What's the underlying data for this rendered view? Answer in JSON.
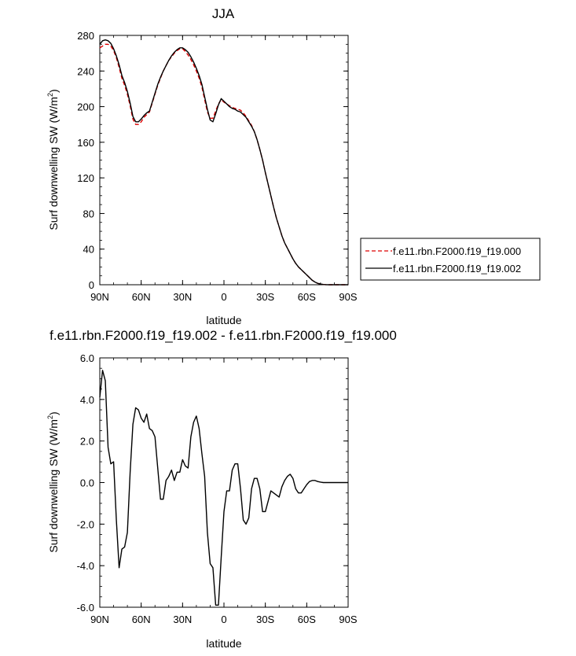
{
  "chart_data": [
    {
      "type": "line",
      "title": "JJA",
      "xlabel": "latitude",
      "ylabel": "Surf downwelling SW (W/m",
      "ylabel_sup": "2",
      "ylabel_tail": ")",
      "xlim": [
        90,
        -90
      ],
      "ylim": [
        0,
        280
      ],
      "x_ticks": [
        {
          "v": 90,
          "label": "90N"
        },
        {
          "v": 60,
          "label": "60N"
        },
        {
          "v": 30,
          "label": "30N"
        },
        {
          "v": 0,
          "label": "0"
        },
        {
          "v": -30,
          "label": "30S"
        },
        {
          "v": -60,
          "label": "60S"
        },
        {
          "v": -90,
          "label": "90S"
        }
      ],
      "y_ticks": [
        {
          "v": 0,
          "label": "0"
        },
        {
          "v": 40,
          "label": "40"
        },
        {
          "v": 80,
          "label": "80"
        },
        {
          "v": 120,
          "label": "120"
        },
        {
          "v": 160,
          "label": "160"
        },
        {
          "v": 200,
          "label": "200"
        },
        {
          "v": 240,
          "label": "240"
        },
        {
          "v": 280,
          "label": "280"
        }
      ],
      "legend_position": "right",
      "series": [
        {
          "name": "f.e11.rbn.F2000.f19_f19.000",
          "color": "#dd0000",
          "dash": "dashed",
          "x": [
            90,
            88,
            86,
            84,
            82,
            80,
            78,
            76,
            74,
            72,
            70,
            68,
            66,
            64,
            62,
            60,
            58,
            56,
            54,
            52,
            50,
            48,
            46,
            44,
            42,
            40,
            38,
            36,
            34,
            32,
            30,
            28,
            26,
            24,
            22,
            20,
            18,
            16,
            14,
            12,
            10,
            8,
            6,
            4,
            2,
            0,
            -2,
            -4,
            -6,
            -8,
            -10,
            -12,
            -14,
            -16,
            -18,
            -20,
            -22,
            -24,
            -26,
            -28,
            -30,
            -32,
            -34,
            -36,
            -38,
            -40,
            -42,
            -44,
            -46,
            -48,
            -50,
            -52,
            -54,
            -56,
            -58,
            -60,
            -62,
            -64,
            -66,
            -68,
            -70,
            -72,
            -74,
            -76,
            -78,
            -80,
            -82,
            -84,
            -86,
            -88,
            -90
          ],
          "values": [
            266,
            268,
            270,
            270,
            268,
            263,
            255,
            244,
            232,
            224,
            214,
            201,
            186,
            180,
            180,
            183,
            188,
            191,
            194,
            204,
            214,
            224,
            232,
            240,
            246,
            252,
            256,
            260,
            263,
            265,
            265,
            262,
            258,
            253,
            247,
            240,
            232,
            222,
            208,
            194,
            187,
            187,
            195,
            203,
            208,
            205,
            203,
            201,
            199,
            198,
            197,
            196,
            193,
            189,
            184,
            179,
            172,
            163,
            152,
            140,
            126,
            113,
            100,
            87,
            75,
            65,
            55,
            47,
            41,
            35,
            29,
            24,
            20,
            17,
            14,
            11,
            8,
            5,
            3,
            1.5,
            0.8,
            0.3,
            0.1,
            0,
            0,
            0,
            0,
            0,
            0,
            0,
            0
          ]
        },
        {
          "name": "f.e11.rbn.F2000.f19_f19.002",
          "color": "#000000",
          "dash": "solid",
          "x": [
            90,
            88,
            86,
            84,
            82,
            80,
            78,
            76,
            74,
            72,
            70,
            68,
            66,
            64,
            62,
            60,
            58,
            56,
            54,
            52,
            50,
            48,
            46,
            44,
            42,
            40,
            38,
            36,
            34,
            32,
            30,
            28,
            26,
            24,
            22,
            20,
            18,
            16,
            14,
            12,
            10,
            8,
            6,
            4,
            2,
            0,
            -2,
            -4,
            -6,
            -8,
            -10,
            -12,
            -14,
            -16,
            -18,
            -20,
            -22,
            -24,
            -26,
            -28,
            -30,
            -32,
            -34,
            -36,
            -38,
            -40,
            -42,
            -44,
            -46,
            -48,
            -50,
            -52,
            -54,
            -56,
            -58,
            -60,
            -62,
            -64,
            -66,
            -68,
            -70,
            -72,
            -74,
            -76,
            -78,
            -80,
            -82,
            -84,
            -86,
            -88,
            -90
          ],
          "values": [
            270,
            274,
            275,
            274,
            271,
            265,
            257,
            247,
            235,
            227,
            217,
            204,
            189,
            183,
            183,
            186,
            190,
            193,
            195,
            205,
            215,
            225,
            233,
            240,
            246,
            252,
            257,
            261,
            264,
            266,
            266,
            264,
            261,
            256,
            250,
            243,
            235,
            225,
            211,
            197,
            185,
            183,
            192,
            202,
            209,
            206,
            203,
            200,
            198,
            197,
            195,
            194,
            191,
            188,
            183,
            178,
            172,
            163,
            152,
            140,
            126,
            113,
            100,
            87,
            75,
            65,
            55,
            47,
            41,
            35,
            29,
            24,
            20,
            17,
            14,
            11,
            8,
            5,
            3,
            1.5,
            0.8,
            0.3,
            0.1,
            0,
            0,
            0,
            0,
            0,
            0,
            0,
            0
          ]
        }
      ]
    },
    {
      "type": "line",
      "title": "f.e11.rbn.F2000.f19_f19.002 - f.e11.rbn.F2000.f19_f19.000",
      "xlabel": "latitude",
      "ylabel": "Surf downwelling SW (W/m",
      "ylabel_sup": "2",
      "ylabel_tail": ")",
      "xlim": [
        90,
        -90
      ],
      "ylim": [
        -6,
        6
      ],
      "x_ticks": [
        {
          "v": 90,
          "label": "90N"
        },
        {
          "v": 60,
          "label": "60N"
        },
        {
          "v": 30,
          "label": "30N"
        },
        {
          "v": 0,
          "label": "0"
        },
        {
          "v": -30,
          "label": "30S"
        },
        {
          "v": -60,
          "label": "60S"
        },
        {
          "v": -90,
          "label": "90S"
        }
      ],
      "y_ticks": [
        {
          "v": -6,
          "label": "-6.0"
        },
        {
          "v": -4,
          "label": "-4.0"
        },
        {
          "v": -2,
          "label": "-2.0"
        },
        {
          "v": 0,
          "label": "0.0"
        },
        {
          "v": 2,
          "label": "2.0"
        },
        {
          "v": 4,
          "label": "4.0"
        },
        {
          "v": 6,
          "label": "6.0"
        }
      ],
      "series": [
        {
          "color": "#000000",
          "dash": "solid",
          "x": [
            90,
            88,
            86,
            84,
            82,
            80,
            78,
            76,
            74,
            72,
            70,
            68,
            66,
            64,
            62,
            60,
            58,
            56,
            54,
            52,
            50,
            48,
            46,
            44,
            42,
            40,
            38,
            36,
            34,
            32,
            30,
            28,
            26,
            24,
            22,
            20,
            18,
            16,
            14,
            12,
            10,
            8,
            6,
            4,
            2,
            0,
            -2,
            -4,
            -6,
            -8,
            -10,
            -12,
            -14,
            -16,
            -18,
            -20,
            -22,
            -24,
            -26,
            -28,
            -30,
            -32,
            -34,
            -36,
            -38,
            -40,
            -42,
            -44,
            -46,
            -48,
            -50,
            -52,
            -54,
            -56,
            -58,
            -60,
            -62,
            -64,
            -66,
            -68,
            -70,
            -72,
            -74,
            -76,
            -78,
            -80,
            -82,
            -84,
            -86,
            -88,
            -90
          ],
          "values": [
            4.1,
            5.4,
            4.9,
            1.7,
            0.9,
            1.0,
            -1.8,
            -4.1,
            -3.2,
            -3.1,
            -2.4,
            0.5,
            2.8,
            3.6,
            3.5,
            3.1,
            2.9,
            3.3,
            2.6,
            2.5,
            2.2,
            0.7,
            -0.8,
            -0.8,
            0.1,
            0.3,
            0.6,
            0.1,
            0.5,
            0.5,
            1.1,
            0.8,
            0.7,
            2.2,
            2.9,
            3.2,
            2.6,
            1.4,
            0.3,
            -2.4,
            -3.9,
            -4.1,
            -5.9,
            -5.9,
            -3.6,
            -1.4,
            -0.4,
            -0.4,
            0.6,
            0.9,
            0.9,
            -0.3,
            -1.8,
            -2.0,
            -1.7,
            -0.3,
            0.2,
            0.2,
            -0.3,
            -1.4,
            -1.4,
            -0.9,
            -0.4,
            -0.5,
            -0.6,
            -0.7,
            -0.2,
            0.1,
            0.3,
            0.4,
            0.2,
            -0.3,
            -0.5,
            -0.5,
            -0.3,
            -0.1,
            0.05,
            0.1,
            0.1,
            0.05,
            0.02,
            0,
            0,
            0,
            0,
            0,
            0,
            0,
            0,
            0,
            0
          ]
        }
      ]
    }
  ]
}
